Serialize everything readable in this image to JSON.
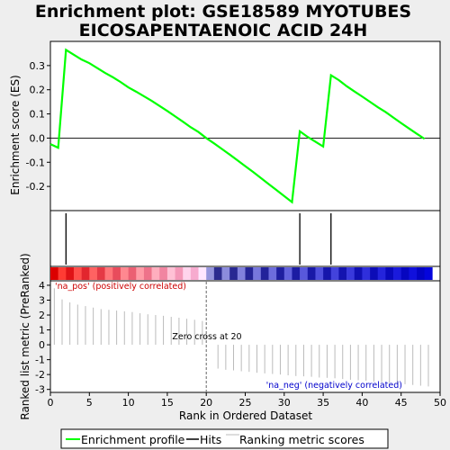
{
  "chart_data": {
    "type": "line",
    "title": [
      "Enrichment plot: GSE18589 MYOTUBES",
      "EICOSAPENTAENOIC ACID 24H"
    ],
    "xlabel": "Rank in Ordered Dataset",
    "xlim": [
      0,
      50
    ],
    "x_ticks": [
      0,
      5,
      10,
      15,
      20,
      25,
      30,
      35,
      40,
      45,
      50
    ],
    "enrichment": {
      "ylabel": "Enrichment score (ES)",
      "ylim": [
        -0.3,
        0.4
      ],
      "y_ticks": [
        0.3,
        0.2,
        0.1,
        0.0,
        -0.1,
        -0.2
      ],
      "y_tick_labels": [
        "0.3",
        "0.2",
        "0.1",
        "0.0",
        "-0.1",
        "-0.2"
      ],
      "color": "#00ff00",
      "x": [
        0,
        1,
        2,
        3,
        4,
        5,
        6,
        7,
        8,
        9,
        10,
        11,
        12,
        13,
        14,
        15,
        16,
        17,
        18,
        19,
        20,
        21,
        22,
        23,
        24,
        25,
        26,
        27,
        28,
        29,
        30,
        31,
        32,
        33,
        34,
        35,
        36,
        37,
        38,
        39,
        40,
        41,
        42,
        43,
        44,
        45,
        46,
        47,
        48
      ],
      "y": [
        -0.025,
        -0.04,
        0.365,
        0.345,
        0.325,
        0.31,
        0.29,
        0.27,
        0.252,
        0.232,
        0.21,
        0.192,
        0.173,
        0.154,
        0.133,
        0.112,
        0.09,
        0.068,
        0.045,
        0.025,
        0.0,
        -0.022,
        -0.045,
        -0.068,
        -0.092,
        -0.116,
        -0.14,
        -0.165,
        -0.19,
        -0.215,
        -0.24,
        -0.265,
        0.028,
        0.005,
        -0.015,
        -0.035,
        0.26,
        0.24,
        0.215,
        0.193,
        0.172,
        0.15,
        0.128,
        0.108,
        0.085,
        0.062,
        0.04,
        0.018,
        -0.003
      ]
    },
    "hits": {
      "x": [
        2,
        32,
        36
      ],
      "color": "#000000"
    },
    "rank_bar": {
      "n": 49,
      "zero_cross": 20,
      "pos_label": "'na_pos' (positively correlated)",
      "neg_label": "'na_neg' (negatively correlated)",
      "pos_color": "#cc0000",
      "neg_color": "#0000cc"
    },
    "ranking_metric": {
      "ylabel": "Ranked list metric (PreRanked)",
      "ylim": [
        -3.2,
        4.3
      ],
      "y_ticks": [
        4,
        3,
        2,
        1,
        0,
        -1,
        -2,
        -3
      ],
      "y_tick_labels": [
        "4",
        "3",
        "2",
        "1",
        "0",
        "-1",
        "-2",
        "-3"
      ],
      "color": "#bbbbbb",
      "x": [
        0,
        1,
        2,
        3,
        4,
        5,
        6,
        7,
        8,
        9,
        10,
        11,
        12,
        13,
        14,
        15,
        16,
        17,
        18,
        19,
        21,
        22,
        23,
        24,
        25,
        26,
        27,
        28,
        29,
        30,
        31,
        32,
        33,
        34,
        35,
        36,
        37,
        38,
        39,
        40,
        41,
        42,
        43,
        44,
        45,
        46,
        47,
        48
      ],
      "values": [
        3.8,
        3.05,
        2.85,
        2.7,
        2.6,
        2.5,
        2.4,
        2.35,
        2.3,
        2.25,
        2.2,
        2.12,
        2.05,
        2.0,
        1.95,
        1.88,
        1.82,
        1.75,
        1.68,
        1.6,
        -1.6,
        -1.68,
        -1.72,
        -1.78,
        -1.82,
        -1.88,
        -1.92,
        -1.96,
        -2.0,
        -2.05,
        -2.1,
        -2.12,
        -2.15,
        -2.2,
        -2.22,
        -2.25,
        -2.3,
        -2.35,
        -2.38,
        -2.42,
        -2.48,
        -2.52,
        -2.56,
        -2.6,
        -2.65,
        -2.7,
        -2.75,
        -2.8
      ],
      "zero_cross_label": "Zero cross at 20"
    },
    "legend": {
      "placement": "bottom",
      "entries": [
        {
          "label": "Enrichment profile",
          "color": "#00ff00",
          "kind": "line"
        },
        {
          "label": "Hits",
          "color": "#000000",
          "kind": "line"
        },
        {
          "label": "Ranking metric scores",
          "color": "#bbbbbb",
          "kind": "line"
        }
      ]
    }
  }
}
